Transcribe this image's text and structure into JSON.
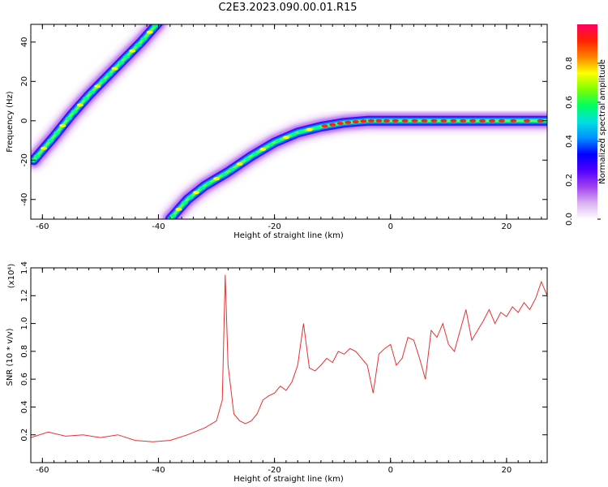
{
  "title": "C2E3.2023.090.00.01.R15",
  "chart_data": [
    {
      "type": "heatmap",
      "xlabel": "Height of straight line (km)",
      "ylabel": "Frequency (Hz)",
      "xlim": [
        -62,
        27
      ],
      "ylim": [
        -50,
        49
      ],
      "xticks": [
        -60,
        -40,
        -20,
        0,
        20
      ],
      "yticks": [
        -40,
        -20,
        0,
        20,
        40
      ],
      "colorbar": {
        "label": "Normalized spectral amplitude",
        "range": [
          0,
          1
        ],
        "ticks": [
          "0.0",
          "0.2",
          "0.4",
          "0.6",
          "0.8"
        ],
        "colors": [
          "#ffffff",
          "#d8b0f0",
          "#a040f0",
          "#5000ff",
          "#0000ff",
          "#0090ff",
          "#00e0e0",
          "#00ff60",
          "#80ff00",
          "#ffff00",
          "#ff8000",
          "#ff2000",
          "#ff0060"
        ]
      },
      "ridges": [
        {
          "points": [
            [
              -61.5,
              -20
            ],
            [
              -58,
              -8
            ],
            [
              -55,
              3
            ],
            [
              -52,
              13
            ],
            [
              -49,
              22
            ],
            [
              -46,
              31
            ],
            [
              -43,
              40
            ],
            [
              -40,
              50
            ]
          ]
        },
        {
          "points": [
            [
              -38,
              -50
            ],
            [
              -35,
              -40
            ],
            [
              -32,
              -33
            ],
            [
              -28,
              -26
            ],
            [
              -24,
              -18
            ],
            [
              -20,
              -11
            ],
            [
              -16,
              -6
            ],
            [
              -12,
              -3
            ],
            [
              -8,
              -1
            ],
            [
              -4,
              0
            ],
            [
              0,
              0
            ],
            [
              5,
              0
            ],
            [
              10,
              0
            ],
            [
              15,
              0
            ],
            [
              20,
              0
            ],
            [
              27,
              0
            ]
          ]
        }
      ]
    },
    {
      "type": "line",
      "xlabel": "Height of straight line (km)",
      "ylabel": "SNR (10 * v/v)",
      "y_multiplier": "(x10⁴)",
      "xlim": [
        -62,
        27
      ],
      "ylim": [
        0,
        1.4
      ],
      "xticks": [
        -60,
        -40,
        -20,
        0,
        20
      ],
      "yticks": [
        0.2,
        0.4,
        0.6,
        0.8,
        1.0,
        1.2,
        1.4
      ],
      "color": "#e83030",
      "series": [
        {
          "x": [
            -62,
            -59,
            -56,
            -53,
            -50,
            -47,
            -44,
            -41,
            -38,
            -35,
            -32,
            -30,
            -29,
            -28.5,
            -28,
            -27,
            -26,
            -25,
            -24,
            -23,
            -22,
            -21,
            -20,
            -19,
            -18,
            -17,
            -16,
            -15,
            -14,
            -13,
            -12,
            -11,
            -10,
            -9,
            -8,
            -7,
            -6,
            -5,
            -4,
            -3,
            -2,
            -1,
            0,
            1,
            2,
            3,
            4,
            5,
            6,
            7,
            8,
            9,
            10,
            11,
            12,
            13,
            14,
            15,
            16,
            17,
            18,
            19,
            20,
            21,
            22,
            23,
            24,
            25,
            26,
            27
          ],
          "y": [
            0.18,
            0.22,
            0.19,
            0.2,
            0.18,
            0.2,
            0.16,
            0.15,
            0.16,
            0.2,
            0.25,
            0.3,
            0.45,
            1.35,
            0.7,
            0.35,
            0.3,
            0.28,
            0.3,
            0.35,
            0.45,
            0.48,
            0.5,
            0.55,
            0.52,
            0.58,
            0.7,
            1.0,
            0.68,
            0.66,
            0.7,
            0.75,
            0.72,
            0.8,
            0.78,
            0.82,
            0.8,
            0.75,
            0.7,
            0.5,
            0.78,
            0.82,
            0.85,
            0.7,
            0.75,
            0.9,
            0.88,
            0.75,
            0.6,
            0.95,
            0.9,
            1.0,
            0.85,
            0.8,
            0.95,
            1.1,
            0.88,
            0.95,
            1.02,
            1.1,
            1.0,
            1.08,
            1.05,
            1.12,
            1.08,
            1.15,
            1.1,
            1.18,
            1.3,
            1.2
          ]
        }
      ]
    }
  ]
}
